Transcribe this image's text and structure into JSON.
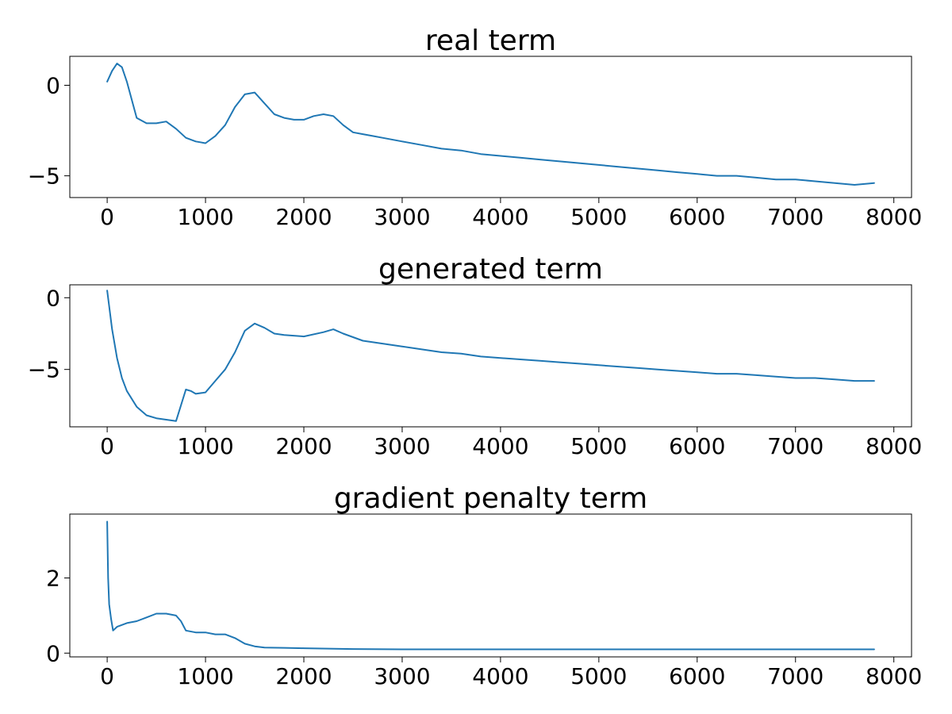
{
  "chart_data": [
    {
      "type": "line",
      "title": "real term",
      "xlim": [
        -380,
        8180
      ],
      "ylim": [
        -6.2,
        1.6
      ],
      "xticks": [
        0,
        1000,
        2000,
        3000,
        4000,
        5000,
        6000,
        7000,
        8000
      ],
      "xtick_labels": [
        "0",
        "1000",
        "2000",
        "3000",
        "4000",
        "5000",
        "6000",
        "7000",
        "8000"
      ],
      "yticks": [
        0,
        -5
      ],
      "ytick_labels": [
        "0",
        "−5"
      ],
      "grid": false,
      "series": [
        {
          "color": "#1f77b4",
          "x": [
            0,
            50,
            100,
            150,
            200,
            250,
            300,
            400,
            500,
            600,
            700,
            800,
            900,
            1000,
            1100,
            1200,
            1300,
            1400,
            1500,
            1600,
            1700,
            1800,
            1900,
            2000,
            2100,
            2200,
            2300,
            2400,
            2500,
            2600,
            2700,
            2800,
            3000,
            3200,
            3400,
            3600,
            3800,
            4000,
            4200,
            4400,
            4600,
            4800,
            5000,
            5200,
            5400,
            5600,
            5800,
            6000,
            6200,
            6400,
            6600,
            6800,
            7000,
            7200,
            7400,
            7600,
            7800
          ],
          "y": [
            0.2,
            0.8,
            1.2,
            1.0,
            0.2,
            -0.8,
            -1.8,
            -2.1,
            -2.1,
            -2.0,
            -2.4,
            -2.9,
            -3.1,
            -3.2,
            -2.8,
            -2.2,
            -1.2,
            -0.5,
            -0.4,
            -1.0,
            -1.6,
            -1.8,
            -1.9,
            -1.9,
            -1.7,
            -1.6,
            -1.7,
            -2.2,
            -2.6,
            -2.7,
            -2.8,
            -2.9,
            -3.1,
            -3.3,
            -3.5,
            -3.6,
            -3.8,
            -3.9,
            -4.0,
            -4.1,
            -4.2,
            -4.3,
            -4.4,
            -4.5,
            -4.6,
            -4.7,
            -4.8,
            -4.9,
            -5.0,
            -5.0,
            -5.1,
            -5.2,
            -5.2,
            -5.3,
            -5.4,
            -5.5,
            -5.4
          ]
        }
      ]
    },
    {
      "type": "line",
      "title": "generated term",
      "xlim": [
        -380,
        8180
      ],
      "ylim": [
        -9.0,
        0.9
      ],
      "xticks": [
        0,
        1000,
        2000,
        3000,
        4000,
        5000,
        6000,
        7000,
        8000
      ],
      "xtick_labels": [
        "0",
        "1000",
        "2000",
        "3000",
        "4000",
        "5000",
        "6000",
        "7000",
        "8000"
      ],
      "yticks": [
        0,
        -5
      ],
      "ytick_labels": [
        "0",
        "−5"
      ],
      "grid": false,
      "series": [
        {
          "color": "#1f77b4",
          "x": [
            0,
            50,
            100,
            150,
            200,
            300,
            400,
            500,
            600,
            700,
            750,
            800,
            850,
            900,
            1000,
            1100,
            1200,
            1300,
            1400,
            1500,
            1600,
            1700,
            1800,
            2000,
            2200,
            2300,
            2400,
            2600,
            2800,
            3000,
            3200,
            3400,
            3600,
            3800,
            4000,
            4200,
            4400,
            4600,
            4800,
            5000,
            5200,
            5400,
            5600,
            5800,
            6000,
            6200,
            6400,
            6600,
            6800,
            7000,
            7200,
            7400,
            7600,
            7800
          ],
          "y": [
            0.5,
            -2.2,
            -4.2,
            -5.6,
            -6.5,
            -7.6,
            -8.2,
            -8.4,
            -8.5,
            -8.6,
            -7.5,
            -6.4,
            -6.5,
            -6.7,
            -6.6,
            -5.8,
            -5.0,
            -3.8,
            -2.3,
            -1.8,
            -2.1,
            -2.5,
            -2.6,
            -2.7,
            -2.4,
            -2.2,
            -2.5,
            -3.0,
            -3.2,
            -3.4,
            -3.6,
            -3.8,
            -3.9,
            -4.1,
            -4.2,
            -4.3,
            -4.4,
            -4.5,
            -4.6,
            -4.7,
            -4.8,
            -4.9,
            -5.0,
            -5.1,
            -5.2,
            -5.3,
            -5.3,
            -5.4,
            -5.5,
            -5.6,
            -5.6,
            -5.7,
            -5.8,
            -5.8
          ]
        }
      ]
    },
    {
      "type": "line",
      "title": "gradient penalty term",
      "xlim": [
        -380,
        8180
      ],
      "ylim": [
        -0.1,
        3.7
      ],
      "xticks": [
        0,
        1000,
        2000,
        3000,
        4000,
        5000,
        6000,
        7000,
        8000
      ],
      "xtick_labels": [
        "0",
        "1000",
        "2000",
        "3000",
        "4000",
        "5000",
        "6000",
        "7000",
        "8000"
      ],
      "yticks": [
        2,
        0
      ],
      "ytick_labels": [
        "2",
        "0"
      ],
      "grid": false,
      "series": [
        {
          "color": "#1f77b4",
          "x": [
            0,
            10,
            20,
            40,
            60,
            100,
            200,
            300,
            400,
            500,
            600,
            700,
            750,
            800,
            900,
            1000,
            1100,
            1200,
            1300,
            1400,
            1500,
            1600,
            1800,
            2000,
            2500,
            3000,
            3500,
            4000,
            5000,
            6000,
            7000,
            7800
          ],
          "y": [
            3.5,
            2.0,
            1.3,
            0.9,
            0.6,
            0.7,
            0.8,
            0.85,
            0.95,
            1.05,
            1.05,
            1.0,
            0.85,
            0.6,
            0.55,
            0.55,
            0.5,
            0.5,
            0.4,
            0.25,
            0.18,
            0.15,
            0.14,
            0.13,
            0.11,
            0.1,
            0.1,
            0.1,
            0.1,
            0.1,
            0.1,
            0.1
          ]
        }
      ]
    }
  ]
}
